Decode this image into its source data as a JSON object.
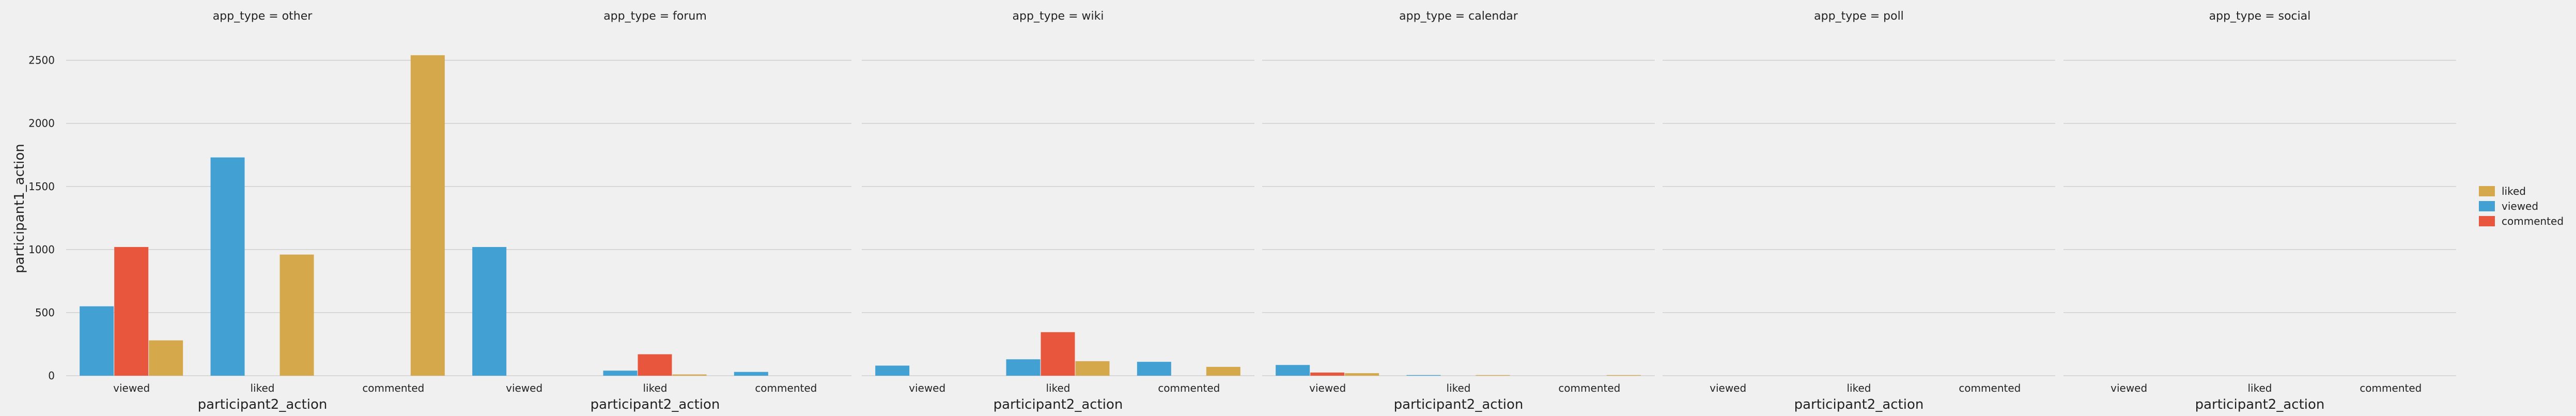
{
  "chart_data": {
    "type": "bar",
    "ylabel": "participant1_action",
    "xlabel": "participant2_action",
    "categories": [
      "viewed",
      "liked",
      "commented"
    ],
    "ylim": [
      0,
      2650
    ],
    "yticks": [
      0,
      500,
      1000,
      1500,
      2000,
      2500
    ],
    "grid": true,
    "legend_placement": "right",
    "series_order": [
      "viewed",
      "commented",
      "liked"
    ],
    "legend": [
      {
        "name": "liked",
        "color": "#d4a84b"
      },
      {
        "name": "viewed",
        "color": "#42a0d3"
      },
      {
        "name": "commented",
        "color": "#e8573d"
      }
    ],
    "facets": [
      {
        "title": "app_type = other",
        "values": {
          "viewed": [
            550,
            1730,
            0
          ],
          "commented": [
            1020,
            0,
            0
          ],
          "liked": [
            280,
            960,
            2540
          ]
        }
      },
      {
        "title": "app_type = forum",
        "values": {
          "viewed": [
            1020,
            40,
            30
          ],
          "commented": [
            0,
            170,
            0
          ],
          "liked": [
            0,
            10,
            0
          ]
        }
      },
      {
        "title": "app_type = wiki",
        "values": {
          "viewed": [
            80,
            130,
            110
          ],
          "commented": [
            0,
            345,
            0
          ],
          "liked": [
            0,
            115,
            70
          ]
        }
      },
      {
        "title": "app_type = calendar",
        "values": {
          "viewed": [
            85,
            5,
            0
          ],
          "commented": [
            25,
            0,
            0
          ],
          "liked": [
            20,
            5,
            5
          ]
        }
      },
      {
        "title": "app_type = poll",
        "values": {
          "viewed": [
            0,
            0,
            0
          ],
          "commented": [
            0,
            0,
            0
          ],
          "liked": [
            0,
            0,
            0
          ]
        }
      },
      {
        "title": "app_type = social",
        "values": {
          "viewed": [
            0,
            0,
            0
          ],
          "commented": [
            0,
            0,
            0
          ],
          "liked": [
            0,
            0,
            0
          ]
        }
      }
    ]
  }
}
